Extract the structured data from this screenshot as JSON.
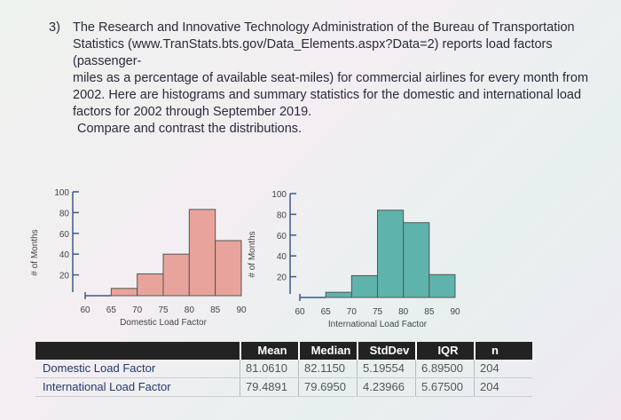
{
  "question": {
    "number": "3)",
    "lines": [
      "The Research and Innovative Technology Administration of the Bureau of Transportation",
      "Statistics (www.TranStats.bts.gov/Data_Elements.aspx?Data=2) reports load factors (passenger-",
      "miles as a percentage of available seat-miles) for commercial airlines for every month from",
      "2002. Here are histograms and summary statistics for the domestic and international load",
      "factors for 2002 through September 2019."
    ],
    "prompt": "Compare and contrast the distributions."
  },
  "chart_data": [
    {
      "type": "bar",
      "xlabel": "Domestic Load Factor",
      "ylabel": "# of Months",
      "bin_edges": [
        60,
        65,
        70,
        75,
        80,
        85,
        90
      ],
      "values": [
        0,
        7,
        21,
        40,
        83,
        53
      ],
      "x_ticks": [
        "60",
        "65",
        "70",
        "75",
        "80",
        "85",
        "90"
      ],
      "y_ticks": [
        "20",
        "40",
        "60",
        "80",
        "100"
      ],
      "ylim": [
        0,
        100
      ],
      "color": "#e8a49c"
    },
    {
      "type": "bar",
      "xlabel": "International Load Factor",
      "ylabel": "# of Months",
      "bin_edges": [
        60,
        65,
        70,
        75,
        80,
        85,
        90
      ],
      "values": [
        0,
        5,
        21,
        84,
        72,
        22
      ],
      "x_ticks": [
        "60",
        "65",
        "70",
        "75",
        "80",
        "85",
        "90"
      ],
      "y_ticks": [
        "20",
        "40",
        "60",
        "80",
        "100"
      ],
      "ylim": [
        0,
        100
      ],
      "color": "#5fb3ad"
    }
  ],
  "table": {
    "headers": [
      "",
      "Mean",
      "Median",
      "StdDev",
      "IQR",
      "n"
    ],
    "rows": [
      [
        "Domestic Load Factor",
        "81.0610",
        "82.1150",
        "5.19554",
        "6.89500",
        "204"
      ],
      [
        "International Load Factor",
        "79.4891",
        "79.6950",
        "4.23966",
        "5.67500",
        "204"
      ]
    ]
  }
}
